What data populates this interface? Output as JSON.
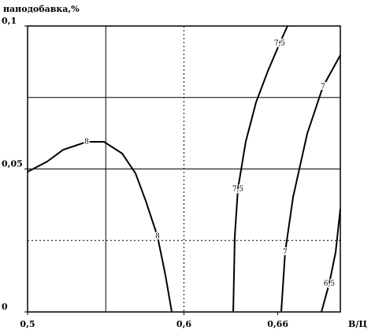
{
  "chart_data": {
    "type": "contour",
    "y_label": "нанодобавка,%",
    "x_label": "В/Ц",
    "color": "#000000",
    "xlim": [
      0.5,
      0.7
    ],
    "ylim": [
      0,
      0.1
    ],
    "xticks": [
      {
        "value": 0.5,
        "label": "0,5"
      },
      {
        "value": 0.6,
        "label": "0,6"
      },
      {
        "value": 0.66,
        "label": "0,66"
      }
    ],
    "yticks": [
      {
        "value": 0,
        "label": "0"
      },
      {
        "value": 0.05,
        "label": "0,05"
      },
      {
        "value": 0.1,
        "label": "0,1"
      }
    ],
    "vlines": [
      0.55,
      0.6
    ],
    "hlines": [
      0.025,
      0.05,
      0.075
    ],
    "series": [
      {
        "name": "8",
        "x": [
          0.5,
          0.5126,
          0.5227,
          0.5378,
          0.5489,
          0.5605,
          0.569,
          0.5756,
          0.5831,
          0.5882,
          0.5922
        ],
        "values": [
          0.049,
          0.0526,
          0.0567,
          0.0595,
          0.0595,
          0.0554,
          0.0485,
          0.0388,
          0.0264,
          0.0127,
          0
        ]
      },
      {
        "name": "7,5",
        "x": [
          0.6315,
          0.6325,
          0.6345,
          0.6395,
          0.6461,
          0.6537,
          0.6612,
          0.6662
        ],
        "values": [
          0,
          0.0264,
          0.043,
          0.0595,
          0.0733,
          0.0843,
          0.0939,
          0.1
        ]
      },
      {
        "name": "7",
        "x": [
          0.6622,
          0.6647,
          0.6698,
          0.6788,
          0.6889,
          0.7
        ],
        "values": [
          0,
          0.0209,
          0.0402,
          0.0623,
          0.0788,
          0.0898
        ]
      },
      {
        "name": "6,5",
        "x": [
          0.6879,
          0.6929,
          0.697,
          0.7
        ],
        "values": [
          0,
          0.0099,
          0.0209,
          0.0361
        ]
      }
    ]
  }
}
